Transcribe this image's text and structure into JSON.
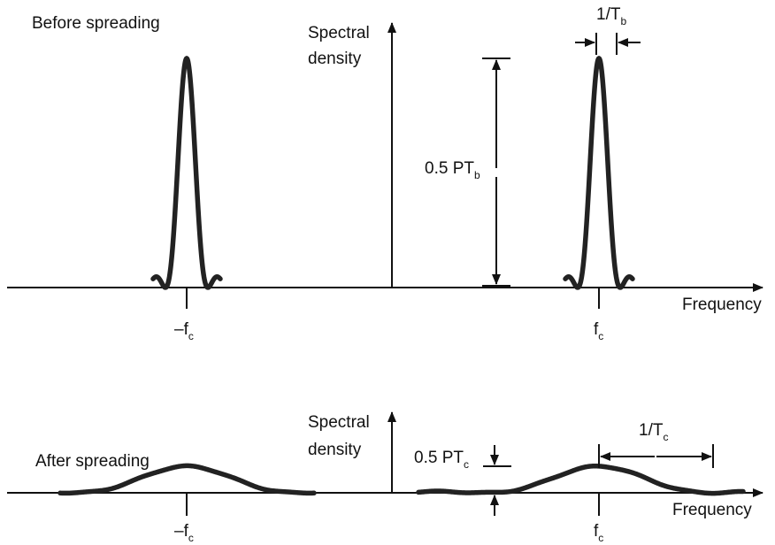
{
  "top": {
    "title": "Before spreading",
    "ylabel_line1": "Spectral",
    "ylabel_line2": "density",
    "xlabel": "Frequency",
    "neg_tick_main": "–f",
    "neg_tick_sub": "c",
    "pos_tick_main": "f",
    "pos_tick_sub": "c",
    "height_main": "0.5 PT",
    "height_sub": "b",
    "width_main": "1/T",
    "width_sub": "b"
  },
  "bottom": {
    "title": "After spreading",
    "ylabel_line1": "Spectral",
    "ylabel_line2": "density",
    "xlabel": "Frequency",
    "neg_tick_main": "–f",
    "neg_tick_sub": "c",
    "pos_tick_main": "f",
    "pos_tick_sub": "c",
    "height_main": "0.5 PT",
    "height_sub": "c",
    "width_main": "1/T",
    "width_sub": "c"
  },
  "colors": {
    "curve": "#222222",
    "axis": "#111111",
    "background": "#ffffff"
  }
}
